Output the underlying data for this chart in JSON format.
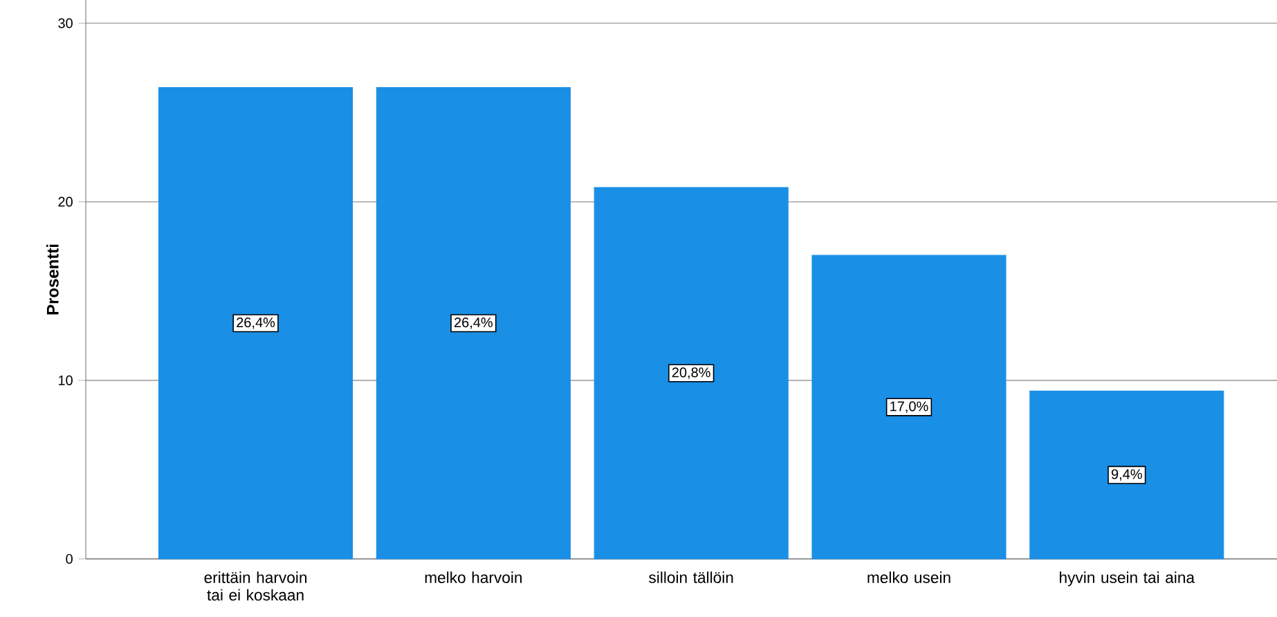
{
  "chart_data": {
    "type": "bar",
    "ylabel": "Prosentti",
    "categories": [
      "erittäin harvoin tai ei koskaan",
      "melko harvoin",
      "silloin tällöin",
      "melko usein",
      "hyvin usein tai aina"
    ],
    "values": [
      26.4,
      26.4,
      20.8,
      17.0,
      9.4
    ],
    "value_labels": [
      "26,4%",
      "26,4%",
      "20,8%",
      "17,0%",
      "9,4%"
    ],
    "color": "#1a8fe6",
    "ylim": [
      0,
      31.3
    ],
    "yticks": [
      0,
      10,
      20,
      30
    ],
    "grid": "y"
  }
}
